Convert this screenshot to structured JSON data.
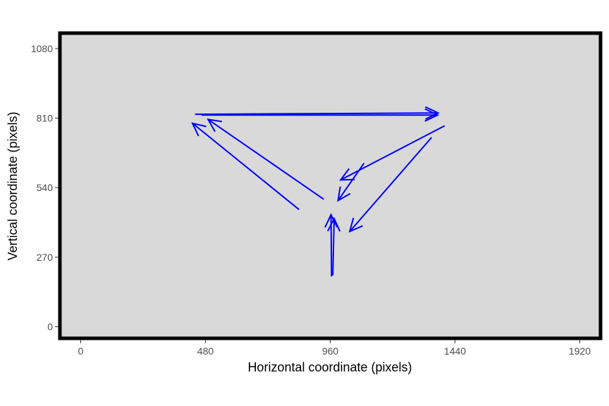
{
  "chart_data": {
    "type": "scatter",
    "title": "",
    "xlabel": "Horizontal coordinate (pixels)",
    "ylabel": "Vertical coordinate (pixels)",
    "xlim": [
      -80,
      2000
    ],
    "ylim": [
      -45,
      1140
    ],
    "x_ticks": [
      0,
      480,
      960,
      1440,
      1920
    ],
    "y_ticks": [
      0,
      270,
      540,
      810,
      1080
    ],
    "grid": false,
    "legend": "none",
    "colors": {
      "panel": "#d9d9d9",
      "border": "#000000",
      "arrow": "#0000ff"
    },
    "arrows": [
      {
        "from": [
          440,
          825
        ],
        "to": [
          1375,
          830
        ]
      },
      {
        "from": [
          465,
          822
        ],
        "to": [
          1373,
          822
        ]
      },
      {
        "from": [
          1400,
          780
        ],
        "to": [
          1000,
          570
        ]
      },
      {
        "from": [
          1350,
          735
        ],
        "to": [
          1035,
          370
        ]
      },
      {
        "from": [
          1090,
          635
        ],
        "to": [
          990,
          490
        ]
      },
      {
        "from": [
          935,
          495
        ],
        "to": [
          490,
          805
        ]
      },
      {
        "from": [
          840,
          455
        ],
        "to": [
          430,
          790
        ]
      },
      {
        "from": [
          970,
          200
        ],
        "to": [
          975,
          420
        ]
      },
      {
        "from": [
          965,
          195
        ],
        "to": [
          963,
          435
        ]
      }
    ]
  }
}
